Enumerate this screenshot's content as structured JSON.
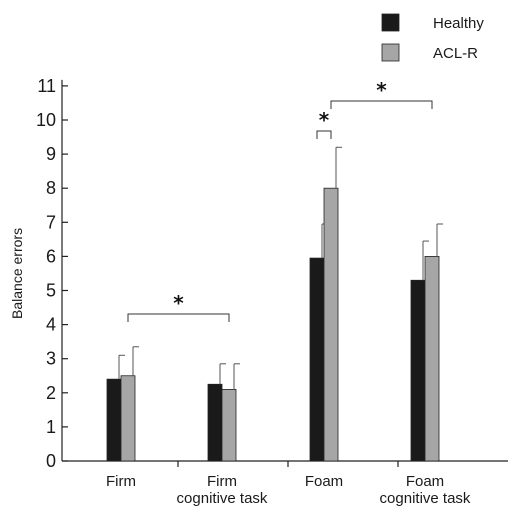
{
  "chart_data": {
    "type": "bar",
    "title": "",
    "xlabel": "",
    "ylabel": "Balance errors",
    "ylim": [
      0,
      11
    ],
    "yticks": [
      "0",
      "1",
      "2",
      "3",
      "4",
      "5",
      "6",
      "7",
      "8",
      "9",
      "10",
      "11"
    ],
    "categories": [
      {
        "line1": "Firm",
        "line2": ""
      },
      {
        "line1": "Firm",
        "line2": "cognitive task"
      },
      {
        "line1": "Foam",
        "line2": ""
      },
      {
        "line1": "Foam",
        "line2": "cognitive task"
      }
    ],
    "series": [
      {
        "name": "Healthy",
        "color": "#1a1a1a",
        "values": [
          2.4,
          2.25,
          5.95,
          5.3
        ],
        "errors": [
          0.7,
          0.6,
          1.0,
          1.15
        ]
      },
      {
        "name": "ACL-R",
        "color": "#a6a6a6",
        "values": [
          2.5,
          2.1,
          8.0,
          6.0
        ],
        "errors": [
          0.85,
          0.75,
          1.2,
          0.95
        ]
      }
    ],
    "legend_position": "top-right",
    "grid": false,
    "significance": [
      {
        "from": "Firm / ACL-R",
        "to": "Firm cognitive task / ACL-R",
        "label": "*"
      },
      {
        "from": "Foam / Healthy",
        "to": "Foam / ACL-R",
        "label": "*"
      },
      {
        "from": "Foam / ACL-R",
        "to": "Foam cognitive task / ACL-R",
        "label": "*"
      }
    ]
  }
}
